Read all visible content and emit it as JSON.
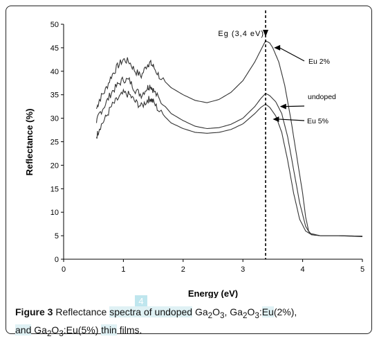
{
  "chart_data": {
    "type": "line",
    "xlabel": "Energy (eV)",
    "ylabel": "Reflectance (%)",
    "xlim": [
      0,
      5
    ],
    "ylim": [
      0,
      50
    ],
    "x_ticks": [
      "0",
      "1",
      "2",
      "3",
      "4",
      "5"
    ],
    "y_ticks": [
      "0",
      "5",
      "10",
      "15",
      "20",
      "25",
      "30",
      "35",
      "40",
      "45",
      "50"
    ],
    "grid": false,
    "series": [
      {
        "name": "Eu 2%",
        "points": [
          [
            0.55,
            32
          ],
          [
            0.6,
            34
          ],
          [
            0.7,
            36
          ],
          [
            0.8,
            39
          ],
          [
            0.9,
            41
          ],
          [
            1.0,
            42.5
          ],
          [
            1.1,
            42
          ],
          [
            1.2,
            40
          ],
          [
            1.3,
            39
          ],
          [
            1.4,
            41.5
          ],
          [
            1.45,
            41.8
          ],
          [
            1.5,
            41
          ],
          [
            1.6,
            39
          ],
          [
            1.8,
            36.5
          ],
          [
            2.0,
            35
          ],
          [
            2.2,
            33.8
          ],
          [
            2.4,
            33.3
          ],
          [
            2.6,
            34
          ],
          [
            2.8,
            35.5
          ],
          [
            3.0,
            38
          ],
          [
            3.2,
            42
          ],
          [
            3.3,
            44.5
          ],
          [
            3.38,
            46.5
          ],
          [
            3.45,
            46
          ],
          [
            3.5,
            45
          ],
          [
            3.6,
            42
          ],
          [
            3.7,
            37
          ],
          [
            3.8,
            30
          ],
          [
            3.9,
            22
          ],
          [
            4.0,
            14
          ],
          [
            4.05,
            9
          ],
          [
            4.1,
            6
          ],
          [
            4.15,
            5.2
          ],
          [
            4.3,
            5
          ],
          [
            4.6,
            5
          ],
          [
            5.0,
            4.8
          ]
        ]
      },
      {
        "name": "undoped",
        "points": [
          [
            0.55,
            29
          ],
          [
            0.6,
            31
          ],
          [
            0.7,
            33
          ],
          [
            0.8,
            35.5
          ],
          [
            0.9,
            37
          ],
          [
            1.0,
            38.3
          ],
          [
            1.1,
            38
          ],
          [
            1.2,
            36
          ],
          [
            1.3,
            35
          ],
          [
            1.4,
            36.5
          ],
          [
            1.45,
            37
          ],
          [
            1.5,
            36
          ],
          [
            1.6,
            34
          ],
          [
            1.8,
            31
          ],
          [
            2.0,
            29.5
          ],
          [
            2.2,
            28.3
          ],
          [
            2.4,
            27.8
          ],
          [
            2.6,
            28
          ],
          [
            2.8,
            28.7
          ],
          [
            3.0,
            30
          ],
          [
            3.2,
            32.5
          ],
          [
            3.3,
            34.2
          ],
          [
            3.38,
            35.3
          ],
          [
            3.45,
            34.8
          ],
          [
            3.55,
            33.5
          ],
          [
            3.65,
            31
          ],
          [
            3.75,
            26
          ],
          [
            3.85,
            19
          ],
          [
            3.95,
            12
          ],
          [
            4.05,
            7
          ],
          [
            4.12,
            5.5
          ],
          [
            4.3,
            5
          ],
          [
            4.6,
            5
          ],
          [
            5.0,
            4.9
          ]
        ]
      },
      {
        "name": "Eu 5%",
        "points": [
          [
            0.55,
            26
          ],
          [
            0.6,
            28
          ],
          [
            0.7,
            30
          ],
          [
            0.8,
            32.5
          ],
          [
            0.9,
            34
          ],
          [
            1.0,
            35.3
          ],
          [
            1.1,
            35
          ],
          [
            1.2,
            33.5
          ],
          [
            1.3,
            32.5
          ],
          [
            1.4,
            33.8
          ],
          [
            1.45,
            34.2
          ],
          [
            1.5,
            33.5
          ],
          [
            1.6,
            31.5
          ],
          [
            1.8,
            29
          ],
          [
            2.0,
            27.8
          ],
          [
            2.2,
            27
          ],
          [
            2.4,
            26.8
          ],
          [
            2.6,
            27
          ],
          [
            2.8,
            27.6
          ],
          [
            3.0,
            28.8
          ],
          [
            3.2,
            31
          ],
          [
            3.3,
            32.3
          ],
          [
            3.38,
            33
          ],
          [
            3.45,
            32.3
          ],
          [
            3.55,
            30.5
          ],
          [
            3.65,
            27
          ],
          [
            3.75,
            21
          ],
          [
            3.85,
            14
          ],
          [
            3.95,
            8.5
          ],
          [
            4.05,
            6
          ],
          [
            4.15,
            5.2
          ],
          [
            4.3,
            5
          ],
          [
            4.6,
            5
          ],
          [
            5.0,
            4.9
          ]
        ]
      }
    ],
    "annotations": [
      {
        "text": "Eg (3,4 eV)",
        "x": 3.38
      },
      {
        "text": "Eu 2%",
        "series": "Eu 2%"
      },
      {
        "text": "undoped",
        "series": "undoped"
      },
      {
        "text": "Eu 5%",
        "series": "Eu 5%"
      }
    ],
    "vline_x": 3.38,
    "line_color": "#333333"
  },
  "caption": {
    "label": "Figure 3",
    "text_1": " Reflectance ",
    "text_2": "spectra of undoped",
    "text_3": " Ga",
    "sub_1": "2",
    "text_4": "O",
    "sub_2": "3",
    "text_5": ", Ga",
    "sub_3": "2",
    "text_6": "O",
    "sub_4": "3",
    "text_7": ":",
    "text_8": "Eu",
    "text_9": "(2%),",
    "text_10": "and",
    "text_11": " Ga",
    "sub_5": "2",
    "text_12": "O",
    "sub_6": "3",
    "text_13": ":Eu(5%) ",
    "text_14": "thin",
    "text_15": " films."
  },
  "badge": "4"
}
